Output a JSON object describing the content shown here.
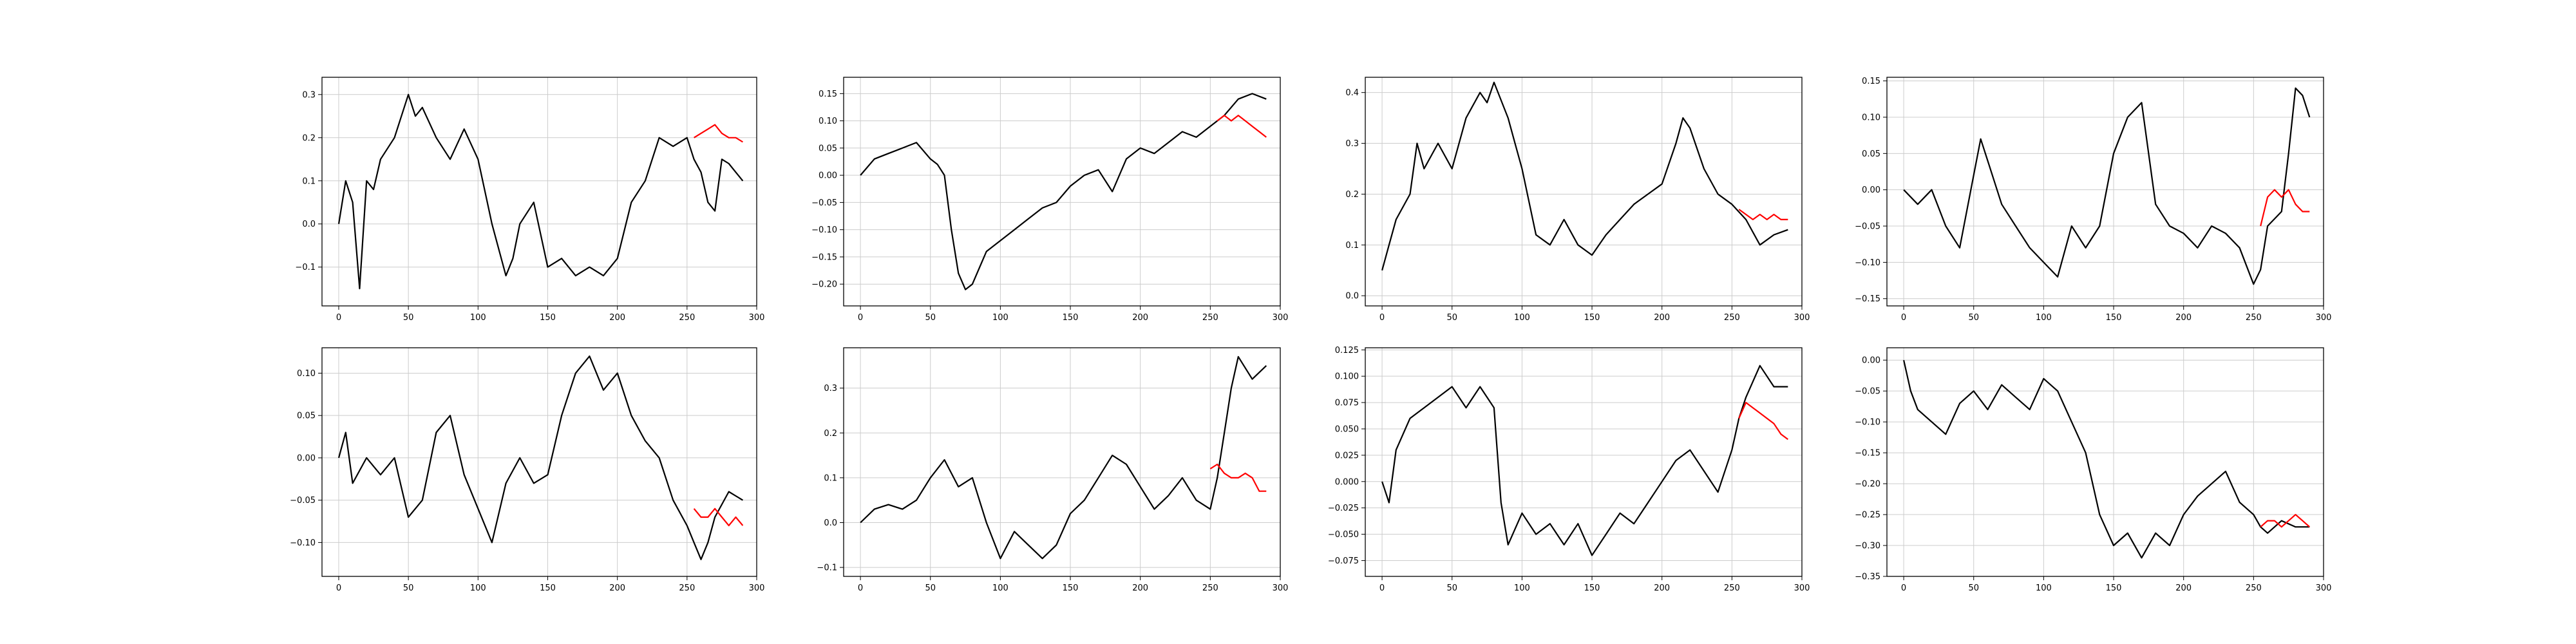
{
  "colors": {
    "series_a": "#000000",
    "series_b": "#ff0000",
    "grid": "#cccccc",
    "axes": "#000000"
  },
  "chart_data": [
    {
      "type": "line",
      "xlim": [
        -12,
        300
      ],
      "ylim": [
        -0.19,
        0.34
      ],
      "xticks": [
        0,
        50,
        100,
        150,
        200,
        250,
        300
      ],
      "yticks": [
        -0.1,
        0.0,
        0.1,
        0.2,
        0.3
      ],
      "ytick_labels": [
        "−0.1",
        "0.0",
        "0.1",
        "0.2",
        "0.3"
      ],
      "grid": true,
      "series": [
        {
          "color": "#000000",
          "x": [
            0,
            5,
            10,
            15,
            20,
            25,
            30,
            40,
            50,
            55,
            60,
            70,
            80,
            90,
            100,
            110,
            120,
            125,
            130,
            140,
            150,
            160,
            170,
            180,
            190,
            200,
            210,
            220,
            230,
            240,
            250,
            255,
            260,
            265,
            270,
            275,
            280,
            285,
            290
          ],
          "y": [
            0.0,
            0.1,
            0.05,
            -0.15,
            0.1,
            0.08,
            0.15,
            0.2,
            0.3,
            0.25,
            0.27,
            0.2,
            0.15,
            0.22,
            0.15,
            0.0,
            -0.12,
            -0.08,
            0.0,
            0.05,
            -0.1,
            -0.08,
            -0.12,
            -0.1,
            -0.12,
            -0.08,
            0.05,
            0.1,
            0.2,
            0.18,
            0.2,
            0.15,
            0.12,
            0.05,
            0.03,
            0.15,
            0.14,
            0.12,
            0.1
          ]
        },
        {
          "color": "#ff0000",
          "x": [
            255,
            260,
            265,
            270,
            275,
            280,
            285,
            290
          ],
          "y": [
            0.2,
            0.21,
            0.22,
            0.23,
            0.21,
            0.2,
            0.2,
            0.19
          ]
        }
      ]
    },
    {
      "type": "line",
      "xlim": [
        -12,
        300
      ],
      "ylim": [
        -0.24,
        0.18
      ],
      "xticks": [
        0,
        50,
        100,
        150,
        200,
        250,
        300
      ],
      "yticks": [
        -0.2,
        -0.15,
        -0.1,
        -0.05,
        0.0,
        0.05,
        0.1,
        0.15
      ],
      "ytick_labels": [
        "−0.20",
        "−0.15",
        "−0.10",
        "−0.05",
        "0.00",
        "0.05",
        "0.10",
        "0.15"
      ],
      "grid": true,
      "series": [
        {
          "color": "#000000",
          "x": [
            0,
            10,
            20,
            30,
            40,
            50,
            55,
            60,
            65,
            70,
            75,
            80,
            90,
            100,
            110,
            120,
            130,
            140,
            150,
            160,
            170,
            180,
            190,
            200,
            210,
            220,
            230,
            240,
            250,
            260,
            270,
            280,
            290
          ],
          "y": [
            0.0,
            0.03,
            0.04,
            0.05,
            0.06,
            0.03,
            0.02,
            0.0,
            -0.1,
            -0.18,
            -0.21,
            -0.2,
            -0.14,
            -0.12,
            -0.1,
            -0.08,
            -0.06,
            -0.05,
            -0.02,
            0.0,
            0.01,
            -0.03,
            0.03,
            0.05,
            0.04,
            0.06,
            0.08,
            0.07,
            0.09,
            0.11,
            0.14,
            0.15,
            0.14
          ]
        },
        {
          "color": "#ff0000",
          "x": [
            255,
            260,
            265,
            270,
            275,
            280,
            285,
            290
          ],
          "y": [
            0.1,
            0.11,
            0.1,
            0.11,
            0.1,
            0.09,
            0.08,
            0.07
          ]
        }
      ]
    },
    {
      "type": "line",
      "xlim": [
        -12,
        300
      ],
      "ylim": [
        -0.02,
        0.43
      ],
      "xticks": [
        0,
        50,
        100,
        150,
        200,
        250,
        300
      ],
      "yticks": [
        0.0,
        0.1,
        0.2,
        0.3,
        0.4
      ],
      "ytick_labels": [
        "0.0",
        "0.1",
        "0.2",
        "0.3",
        "0.4"
      ],
      "grid": true,
      "series": [
        {
          "color": "#000000",
          "x": [
            0,
            5,
            10,
            20,
            25,
            30,
            40,
            50,
            60,
            70,
            75,
            80,
            90,
            95,
            100,
            110,
            120,
            130,
            140,
            150,
            160,
            170,
            180,
            190,
            200,
            210,
            215,
            220,
            230,
            240,
            250,
            260,
            270,
            280,
            290
          ],
          "y": [
            0.05,
            0.1,
            0.15,
            0.2,
            0.3,
            0.25,
            0.3,
            0.25,
            0.35,
            0.4,
            0.38,
            0.42,
            0.35,
            0.3,
            0.25,
            0.12,
            0.1,
            0.15,
            0.1,
            0.08,
            0.12,
            0.15,
            0.18,
            0.2,
            0.22,
            0.3,
            0.35,
            0.33,
            0.25,
            0.2,
            0.18,
            0.15,
            0.1,
            0.12,
            0.13
          ]
        },
        {
          "color": "#ff0000",
          "x": [
            255,
            260,
            265,
            270,
            275,
            280,
            285,
            290
          ],
          "y": [
            0.17,
            0.16,
            0.15,
            0.16,
            0.15,
            0.16,
            0.15,
            0.15
          ]
        }
      ]
    },
    {
      "type": "line",
      "xlim": [
        -12,
        300
      ],
      "ylim": [
        -0.16,
        0.155
      ],
      "xticks": [
        0,
        50,
        100,
        150,
        200,
        250,
        300
      ],
      "yticks": [
        -0.15,
        -0.1,
        -0.05,
        0.0,
        0.05,
        0.1,
        0.15
      ],
      "ytick_labels": [
        "−0.15",
        "−0.10",
        "−0.05",
        "0.00",
        "0.05",
        "0.10",
        "0.15"
      ],
      "grid": true,
      "series": [
        {
          "color": "#000000",
          "x": [
            0,
            10,
            20,
            30,
            40,
            50,
            55,
            60,
            70,
            80,
            90,
            100,
            110,
            120,
            130,
            140,
            150,
            160,
            170,
            180,
            190,
            200,
            210,
            220,
            230,
            240,
            250,
            255,
            260,
            270,
            275,
            280,
            285,
            290
          ],
          "y": [
            0.0,
            -0.02,
            0.0,
            -0.05,
            -0.08,
            0.02,
            0.07,
            0.04,
            -0.02,
            -0.05,
            -0.08,
            -0.1,
            -0.12,
            -0.05,
            -0.08,
            -0.05,
            0.05,
            0.1,
            0.12,
            -0.02,
            -0.05,
            -0.06,
            -0.08,
            -0.05,
            -0.06,
            -0.08,
            -0.13,
            -0.11,
            -0.05,
            -0.03,
            0.05,
            0.14,
            0.13,
            0.1
          ]
        },
        {
          "color": "#ff0000",
          "x": [
            255,
            260,
            265,
            270,
            275,
            280,
            285,
            290
          ],
          "y": [
            -0.05,
            -0.01,
            0.0,
            -0.01,
            0.0,
            -0.02,
            -0.03,
            -0.03
          ]
        }
      ]
    },
    {
      "type": "line",
      "xlim": [
        -12,
        300
      ],
      "ylim": [
        -0.14,
        0.13
      ],
      "xticks": [
        0,
        50,
        100,
        150,
        200,
        250,
        300
      ],
      "yticks": [
        -0.1,
        -0.05,
        0.0,
        0.05,
        0.1
      ],
      "ytick_labels": [
        "−0.10",
        "−0.05",
        "0.00",
        "0.05",
        "0.10"
      ],
      "grid": true,
      "series": [
        {
          "color": "#000000",
          "x": [
            0,
            5,
            10,
            20,
            30,
            40,
            50,
            60,
            70,
            80,
            90,
            100,
            110,
            120,
            130,
            140,
            150,
            160,
            170,
            180,
            190,
            200,
            210,
            220,
            230,
            240,
            250,
            255,
            260,
            265,
            270,
            280,
            290
          ],
          "y": [
            0.0,
            0.03,
            -0.03,
            0.0,
            -0.02,
            0.0,
            -0.07,
            -0.05,
            0.03,
            0.05,
            -0.02,
            -0.06,
            -0.1,
            -0.03,
            0.0,
            -0.03,
            -0.02,
            0.05,
            0.1,
            0.12,
            0.08,
            0.1,
            0.05,
            0.02,
            0.0,
            -0.05,
            -0.08,
            -0.1,
            -0.12,
            -0.1,
            -0.07,
            -0.04,
            -0.05
          ]
        },
        {
          "color": "#ff0000",
          "x": [
            255,
            260,
            265,
            270,
            275,
            280,
            285,
            290
          ],
          "y": [
            -0.06,
            -0.07,
            -0.07,
            -0.06,
            -0.07,
            -0.08,
            -0.07,
            -0.08
          ]
        }
      ]
    },
    {
      "type": "line",
      "xlim": [
        -12,
        300
      ],
      "ylim": [
        -0.12,
        0.39
      ],
      "xticks": [
        0,
        50,
        100,
        150,
        200,
        250,
        300
      ],
      "yticks": [
        -0.1,
        0.0,
        0.1,
        0.2,
        0.3
      ],
      "ytick_labels": [
        "−0.1",
        "0.0",
        "0.1",
        "0.2",
        "0.3"
      ],
      "grid": true,
      "series": [
        {
          "color": "#000000",
          "x": [
            0,
            10,
            20,
            30,
            40,
            50,
            60,
            70,
            80,
            90,
            100,
            110,
            120,
            130,
            140,
            150,
            160,
            170,
            180,
            190,
            200,
            210,
            220,
            230,
            240,
            250,
            255,
            260,
            265,
            270,
            280,
            290
          ],
          "y": [
            0.0,
            0.03,
            0.04,
            0.03,
            0.05,
            0.1,
            0.14,
            0.08,
            0.1,
            0.0,
            -0.08,
            -0.02,
            -0.05,
            -0.08,
            -0.05,
            0.02,
            0.05,
            0.1,
            0.15,
            0.13,
            0.08,
            0.03,
            0.06,
            0.1,
            0.05,
            0.03,
            0.1,
            0.2,
            0.3,
            0.37,
            0.32,
            0.35
          ]
        },
        {
          "color": "#ff0000",
          "x": [
            250,
            255,
            260,
            265,
            270,
            275,
            280,
            285,
            290
          ],
          "y": [
            0.12,
            0.13,
            0.11,
            0.1,
            0.1,
            0.11,
            0.1,
            0.07,
            0.07
          ]
        }
      ]
    },
    {
      "type": "line",
      "xlim": [
        -12,
        300
      ],
      "ylim": [
        -0.09,
        0.127
      ],
      "xticks": [
        0,
        50,
        100,
        150,
        200,
        250,
        300
      ],
      "yticks": [
        -0.075,
        -0.05,
        -0.025,
        0.0,
        0.025,
        0.05,
        0.075,
        0.1,
        0.125
      ],
      "ytick_labels": [
        "−0.075",
        "−0.050",
        "−0.025",
        "0.000",
        "0.025",
        "0.050",
        "0.075",
        "0.100",
        "0.125"
      ],
      "grid": true,
      "series": [
        {
          "color": "#000000",
          "x": [
            0,
            5,
            10,
            20,
            30,
            40,
            50,
            60,
            70,
            75,
            80,
            85,
            90,
            100,
            110,
            120,
            130,
            140,
            150,
            160,
            170,
            180,
            190,
            200,
            210,
            220,
            230,
            240,
            250,
            255,
            260,
            270,
            275,
            280,
            290
          ],
          "y": [
            0.0,
            -0.02,
            0.03,
            0.06,
            0.07,
            0.08,
            0.09,
            0.07,
            0.09,
            0.08,
            0.07,
            -0.02,
            -0.06,
            -0.03,
            -0.05,
            -0.04,
            -0.06,
            -0.04,
            -0.07,
            -0.05,
            -0.03,
            -0.04,
            -0.02,
            0.0,
            0.02,
            0.03,
            0.01,
            -0.01,
            0.03,
            0.06,
            0.08,
            0.11,
            0.1,
            0.09,
            0.09
          ]
        },
        {
          "color": "#ff0000",
          "x": [
            255,
            260,
            265,
            270,
            275,
            280,
            285,
            290
          ],
          "y": [
            0.06,
            0.075,
            0.07,
            0.065,
            0.06,
            0.055,
            0.045,
            0.04
          ]
        }
      ]
    },
    {
      "type": "line",
      "xlim": [
        -12,
        300
      ],
      "ylim": [
        -0.35,
        0.02
      ],
      "xticks": [
        0,
        50,
        100,
        150,
        200,
        250,
        300
      ],
      "yticks": [
        -0.35,
        -0.3,
        -0.25,
        -0.2,
        -0.15,
        -0.1,
        -0.05,
        0.0
      ],
      "ytick_labels": [
        "−0.35",
        "−0.30",
        "−0.25",
        "−0.20",
        "−0.15",
        "−0.10",
        "−0.05",
        "0.00"
      ],
      "grid": true,
      "series": [
        {
          "color": "#000000",
          "x": [
            0,
            5,
            10,
            20,
            30,
            40,
            50,
            60,
            70,
            80,
            90,
            100,
            110,
            120,
            130,
            140,
            150,
            160,
            170,
            180,
            190,
            200,
            210,
            220,
            230,
            240,
            250,
            255,
            260,
            270,
            280,
            290
          ],
          "y": [
            0.0,
            -0.05,
            -0.08,
            -0.1,
            -0.12,
            -0.07,
            -0.05,
            -0.08,
            -0.04,
            -0.06,
            -0.08,
            -0.03,
            -0.05,
            -0.1,
            -0.15,
            -0.25,
            -0.3,
            -0.28,
            -0.32,
            -0.28,
            -0.3,
            -0.25,
            -0.22,
            -0.2,
            -0.18,
            -0.23,
            -0.25,
            -0.27,
            -0.28,
            -0.26,
            -0.27,
            -0.27
          ]
        },
        {
          "color": "#ff0000",
          "x": [
            255,
            260,
            265,
            270,
            275,
            280,
            285,
            290
          ],
          "y": [
            -0.27,
            -0.26,
            -0.26,
            -0.27,
            -0.26,
            -0.25,
            -0.26,
            -0.27
          ]
        }
      ]
    }
  ]
}
